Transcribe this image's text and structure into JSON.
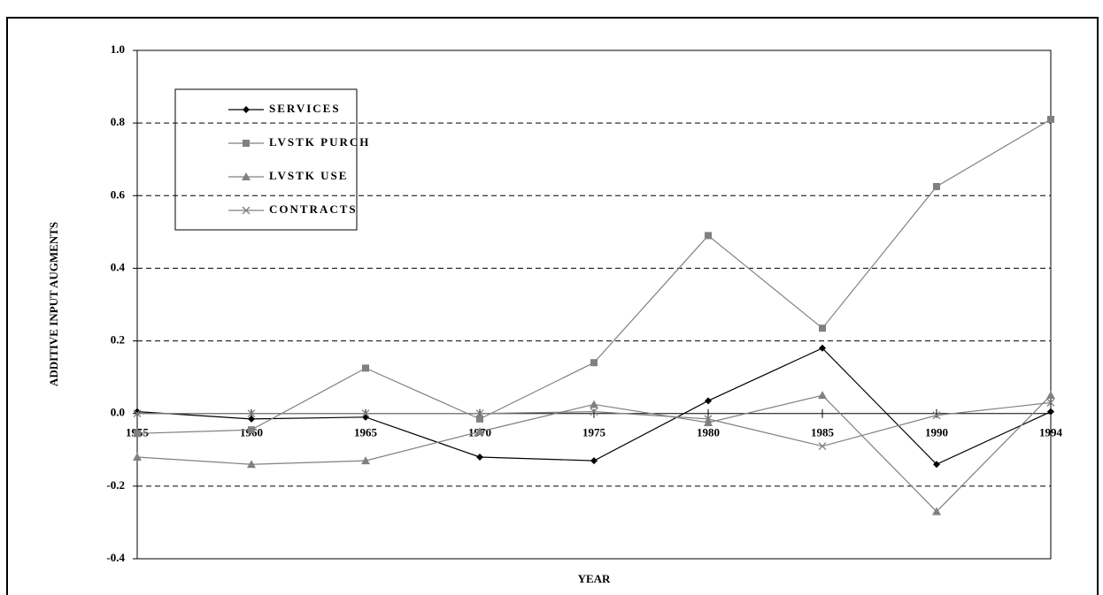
{
  "chart_data": {
    "type": "line",
    "xlabel": "YEAR",
    "ylabel": "ADDITIVE INPUT AUGMENTS",
    "categories": [
      "1955",
      "1960",
      "1965",
      "1970",
      "1975",
      "1980",
      "1985",
      "1990",
      "1994"
    ],
    "series": [
      {
        "name": "SERVICES",
        "color": "#000000",
        "marker": "diamond",
        "values": [
          0.005,
          -0.015,
          -0.01,
          -0.12,
          -0.13,
          0.035,
          0.18,
          -0.14,
          0.005
        ]
      },
      {
        "name": "LVSTK PURCH",
        "color": "#808080",
        "marker": "square",
        "values": [
          -0.055,
          -0.045,
          0.125,
          -0.015,
          0.14,
          0.49,
          0.235,
          0.625,
          0.81
        ]
      },
      {
        "name": "LVSTK USE",
        "color": "#808080",
        "marker": "triangle",
        "values": [
          -0.12,
          -0.14,
          -0.13,
          -0.05,
          0.025,
          -0.025,
          0.05,
          -0.27,
          0.05
        ]
      },
      {
        "name": "CONTRACTS",
        "color": "#808080",
        "marker": "x",
        "values": [
          0.0,
          0.0,
          0.0,
          0.0,
          0.005,
          -0.015,
          -0.09,
          -0.005,
          0.03
        ]
      }
    ],
    "ylim": [
      -0.4,
      1.0
    ],
    "yticks": [
      -0.4,
      -0.2,
      {
        "value": 0,
        "label": "0.0"
      },
      0.2,
      0.4,
      0.6,
      0.8,
      {
        "value": 1,
        "label": "1.0"
      }
    ],
    "grid": true
  }
}
